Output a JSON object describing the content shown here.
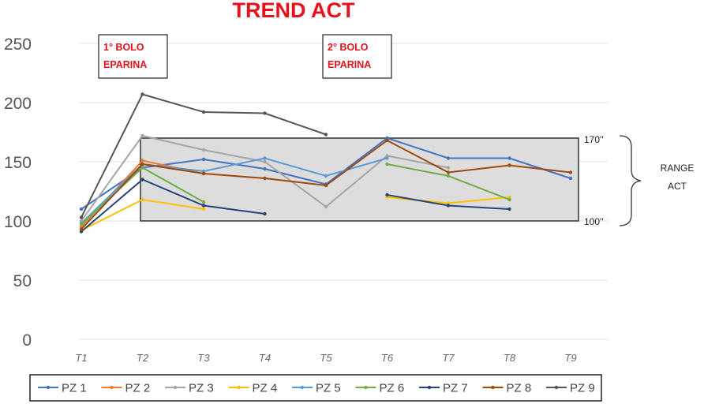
{
  "chart_data": {
    "type": "line",
    "title": "TREND ACT",
    "categories": [
      "T1",
      "T2",
      "T3",
      "T4",
      "T5",
      "T6",
      "T7",
      "T8",
      "T9"
    ],
    "yticks": [
      0,
      50,
      100,
      150,
      200,
      250
    ],
    "ylim": [
      0,
      250
    ],
    "grid": true,
    "legend_position": "bottom",
    "series": [
      {
        "name": "PZ 1",
        "color": "#4472c4",
        "values": [
          110,
          145,
          152,
          144,
          131,
          170,
          153,
          153,
          136
        ]
      },
      {
        "name": "PZ 2",
        "color": "#ed7d31",
        "values": [
          95,
          151,
          140,
          null,
          null,
          null,
          null,
          null,
          null
        ]
      },
      {
        "name": "PZ 3",
        "color": "#a5a5a5",
        "values": [
          100,
          172,
          160,
          150,
          112,
          155,
          145,
          null,
          null
        ]
      },
      {
        "name": "PZ 4",
        "color": "#ffc000",
        "values": [
          92,
          118,
          110,
          null,
          null,
          120,
          115,
          120,
          null
        ]
      },
      {
        "name": "PZ 5",
        "color": "#5b9bd5",
        "values": [
          98,
          148,
          142,
          153,
          138,
          153,
          null,
          null,
          null
        ]
      },
      {
        "name": "PZ 6",
        "color": "#70ad47",
        "values": [
          97,
          145,
          116,
          null,
          null,
          148,
          138,
          118,
          null
        ]
      },
      {
        "name": "PZ 7",
        "color": "#264478",
        "values": [
          91,
          135,
          113,
          106,
          null,
          122,
          113,
          110,
          null
        ]
      },
      {
        "name": "PZ 8",
        "color": "#9e480e",
        "values": [
          93,
          148,
          140,
          136,
          130,
          168,
          141,
          147,
          141
        ]
      },
      {
        "name": "PZ 9",
        "color": "#555555",
        "values": [
          103,
          207,
          192,
          191,
          173,
          null,
          null,
          null,
          null
        ]
      }
    ],
    "range_band": {
      "low": 100,
      "high": 170,
      "low_label": "100''",
      "high_label": "170''",
      "label_lines": [
        "RANGE",
        "ACT"
      ]
    },
    "annotations": [
      {
        "lines": [
          "1° BOLO",
          "EPARINA"
        ],
        "at": "T2"
      },
      {
        "lines": [
          "2° BOLO",
          "EPARINA"
        ],
        "at": "T5"
      }
    ]
  }
}
